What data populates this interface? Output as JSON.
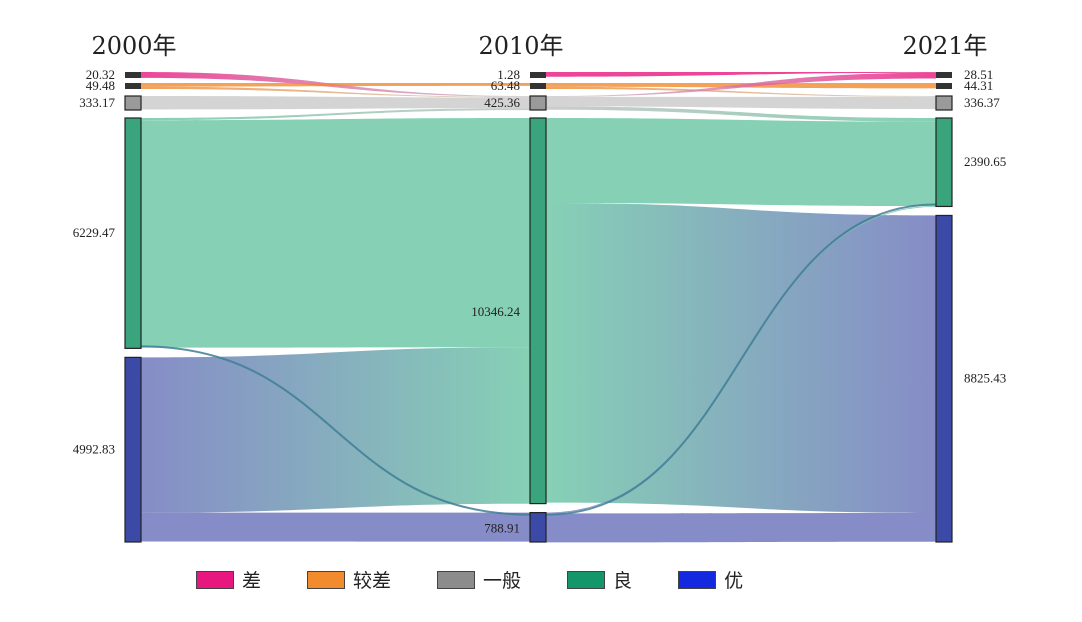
{
  "chart_data": {
    "type": "sankey",
    "columns": [
      "2000年",
      "2010年",
      "2021年"
    ],
    "categories": [
      "差",
      "较差",
      "一般",
      "良",
      "优"
    ],
    "colors": {
      "差": "#e8177f",
      "较差": "#f28a2e",
      "一般": "#8c8c8c",
      "良": "#12966a",
      "优": "#1428e0"
    },
    "node_colors": {
      "差": "#555555",
      "较差": "#555555",
      "一般": "#9a9a9a",
      "良": "#3aa57d",
      "优": "#3a4aa6"
    },
    "nodes": [
      {
        "column": 0,
        "category": "差",
        "value": 20.32,
        "label": "20.32"
      },
      {
        "column": 0,
        "category": "较差",
        "value": 49.48,
        "label": "49.48"
      },
      {
        "column": 0,
        "category": "一般",
        "value": 333.17,
        "label": "333.17"
      },
      {
        "column": 0,
        "category": "良",
        "value": 6229.47,
        "label": "6229.47"
      },
      {
        "column": 0,
        "category": "优",
        "value": 4992.83,
        "label": "4992.83"
      },
      {
        "column": 1,
        "category": "差",
        "value": 1.28,
        "label": "1.28"
      },
      {
        "column": 1,
        "category": "较差",
        "value": 63.48,
        "label": "63.48"
      },
      {
        "column": 1,
        "category": "一般",
        "value": 425.36,
        "label": "425.36"
      },
      {
        "column": 1,
        "category": "良",
        "value": 10346.24,
        "label": "10346.24"
      },
      {
        "column": 1,
        "category": "优",
        "value": 788.91,
        "label": "788.91"
      },
      {
        "column": 2,
        "category": "差",
        "value": 28.51,
        "label": "28.51"
      },
      {
        "column": 2,
        "category": "较差",
        "value": 44.31,
        "label": "44.31"
      },
      {
        "column": 2,
        "category": "一般",
        "value": 336.37,
        "label": "336.37"
      },
      {
        "column": 2,
        "category": "良",
        "value": 2390.65,
        "label": "2390.65"
      },
      {
        "column": 2,
        "category": "优",
        "value": 8825.43,
        "label": "8825.43"
      }
    ],
    "links": [
      {
        "from_column": 0,
        "from": "差",
        "to": "一般",
        "value": 20
      },
      {
        "from_column": 0,
        "from": "较差",
        "to": "较差",
        "value": 30
      },
      {
        "from_column": 0,
        "from": "较差",
        "to": "一般",
        "value": 19
      },
      {
        "from_column": 0,
        "from": "一般",
        "to": "一般",
        "value": 320
      },
      {
        "from_column": 0,
        "from": "良",
        "to": "一般",
        "value": 60
      },
      {
        "from_column": 0,
        "from": "良",
        "to": "良",
        "value": 6150
      },
      {
        "from_column": 0,
        "from": "优",
        "to": "良",
        "value": 4200
      },
      {
        "from_column": 0,
        "from": "优",
        "to": "优",
        "value": 780
      },
      {
        "from_column": 1,
        "from": "差",
        "to": "差",
        "value": 1
      },
      {
        "from_column": 1,
        "from": "较差",
        "to": "较差",
        "value": 40
      },
      {
        "from_column": 1,
        "from": "较差",
        "to": "一般",
        "value": 23
      },
      {
        "from_column": 1,
        "from": "一般",
        "to": "差",
        "value": 27
      },
      {
        "from_column": 1,
        "from": "一般",
        "to": "一般",
        "value": 290
      },
      {
        "from_column": 1,
        "from": "一般",
        "to": "良",
        "value": 100
      },
      {
        "from_column": 1,
        "from": "良",
        "to": "良",
        "value": 2280
      },
      {
        "from_column": 1,
        "from": "良",
        "to": "优",
        "value": 8040
      },
      {
        "from_column": 1,
        "from": "优",
        "to": "良",
        "value": 10
      },
      {
        "from_column": 1,
        "from": "优",
        "to": "优",
        "value": 778
      }
    ]
  },
  "legend": [
    {
      "label": "差",
      "color": "#e8177f"
    },
    {
      "label": "较差",
      "color": "#f28a2e"
    },
    {
      "label": "一般",
      "color": "#8c8c8c"
    },
    {
      "label": "良",
      "color": "#12966a"
    },
    {
      "label": "优",
      "color": "#1428e0"
    }
  ]
}
